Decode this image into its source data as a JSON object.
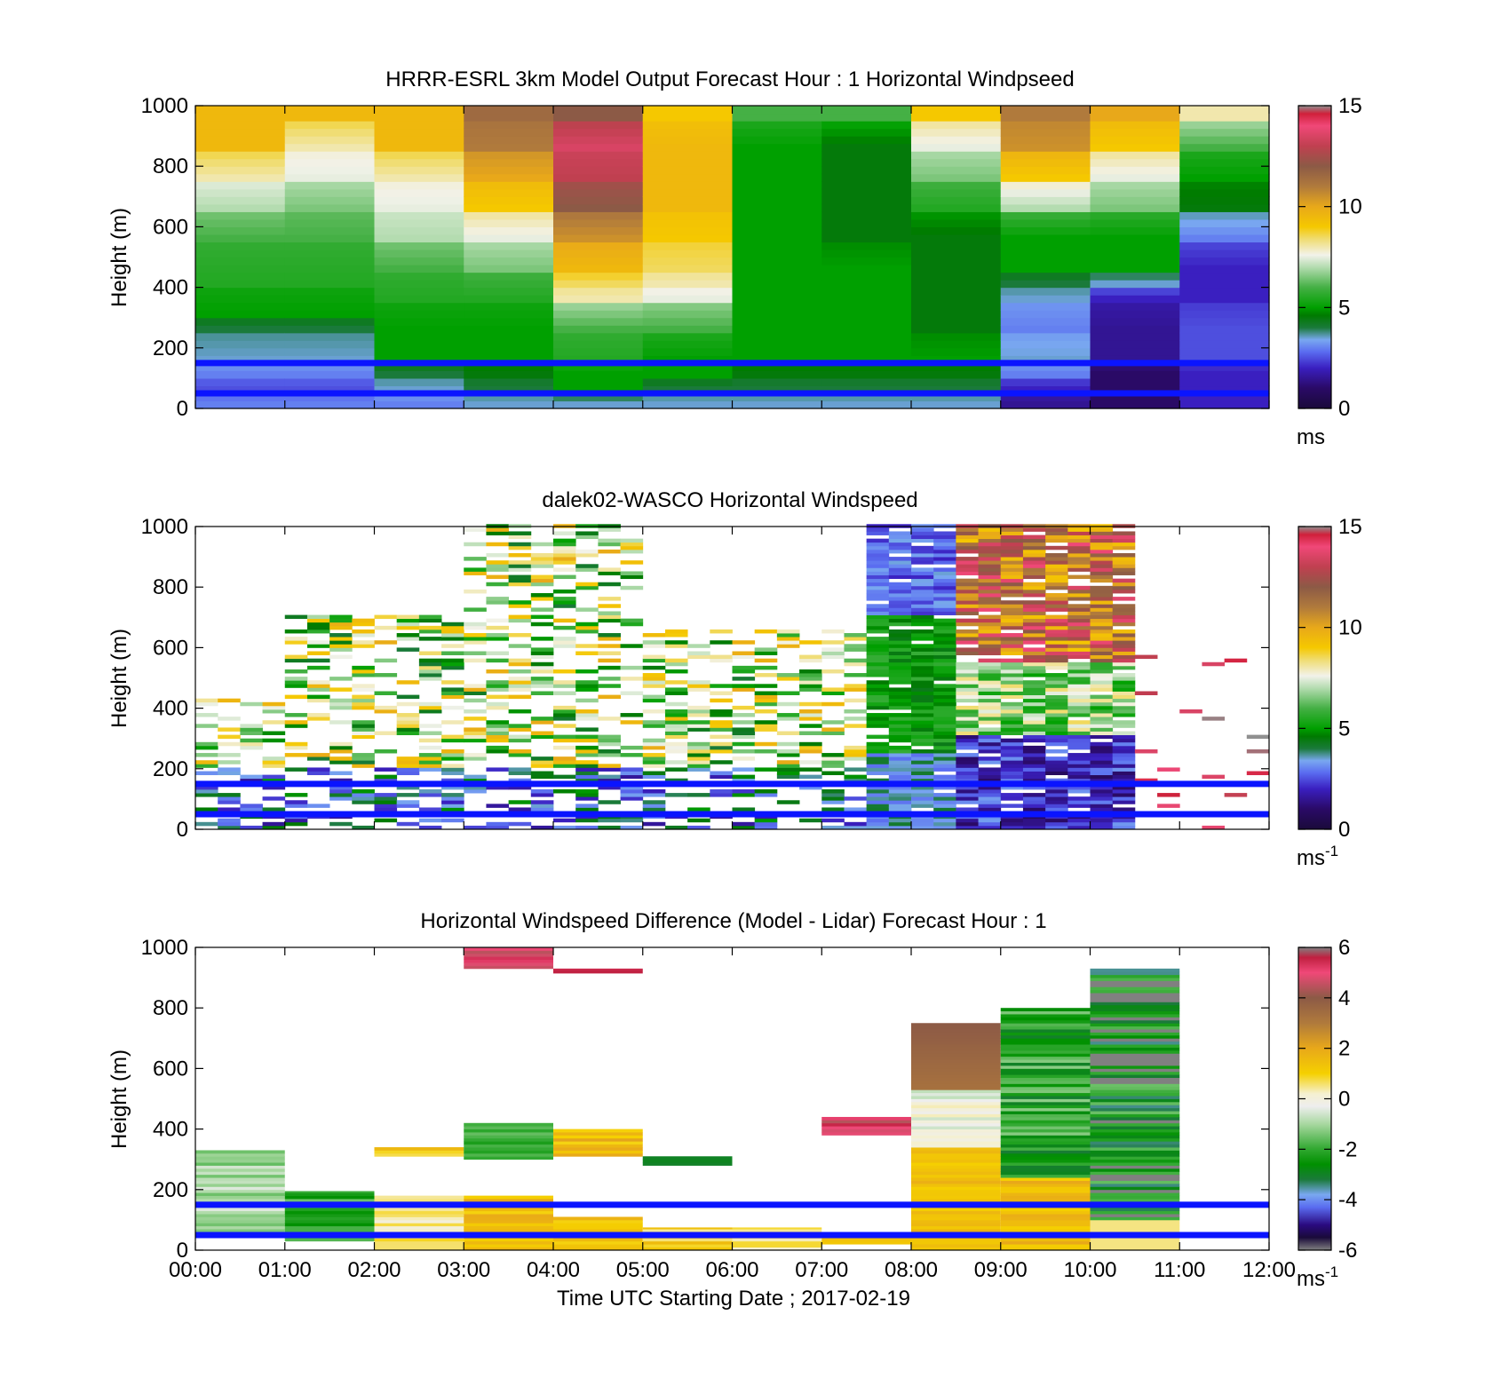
{
  "x_tick_labels": [
    "00:00",
    "01:00",
    "02:00",
    "03:00",
    "04:00",
    "05:00",
    "06:00",
    "07:00",
    "08:00",
    "09:00",
    "10:00",
    "11:00",
    "12:00"
  ],
  "x_label": "Time UTC  Starting Date ; 2017-02-19",
  "y_tick_labels": [
    "0",
    "200",
    "400",
    "600",
    "800",
    "1000"
  ],
  "blue_line_color": "#0a14ff",
  "panels": [
    {
      "id": "model",
      "title": "HRRR-ESRL 3km Model Output   Forecast Hour : 1 Horizontal Windpseed",
      "ylabel": "Height (m)",
      "colorbar": {
        "ticks": [
          "0",
          "5",
          "10",
          "15"
        ],
        "unit": "ms",
        "unit_sup": ""
      }
    },
    {
      "id": "lidar",
      "title": "dalek02-WASCO  Horizontal Windspeed",
      "ylabel": "Height (m)",
      "colorbar": {
        "ticks": [
          "0",
          "5",
          "10",
          "15"
        ],
        "unit": "ms",
        "unit_sup": "-1"
      }
    },
    {
      "id": "diff",
      "title": "Horizontal Windspeed Difference (Model - Lidar) Forecast Hour : 1",
      "ylabel": "Height (m)",
      "colorbar": {
        "ticks": [
          "-6",
          "-4",
          "-2",
          "0",
          "2",
          "4",
          "6"
        ],
        "unit": "ms",
        "unit_sup": "-1"
      }
    }
  ],
  "chart_data": [
    {
      "type": "heatmap",
      "title": "HRRR-ESRL 3km Model Output   Forecast Hour : 1 Horizontal Windpseed",
      "xlabel": "",
      "ylabel": "Height (m)",
      "x_hours": [
        0,
        1,
        2,
        3,
        4,
        5,
        6,
        7,
        8,
        9,
        10,
        11
      ],
      "xlim": [
        0,
        12
      ],
      "ylim": [
        0,
        1000
      ],
      "colorbar_range": [
        0,
        15
      ],
      "colorbar_unit": "ms",
      "reference_lines_height_m": [
        50,
        150
      ],
      "columns": [
        {
          "hour": 0,
          "profile": [
            [
              0,
              3
            ],
            [
              50,
              2.5
            ],
            [
              100,
              3
            ],
            [
              150,
              3.5
            ],
            [
              250,
              4
            ],
            [
              300,
              5
            ],
            [
              400,
              5.5
            ],
            [
              550,
              6
            ],
            [
              650,
              7
            ],
            [
              750,
              8
            ],
            [
              850,
              9.5
            ],
            [
              950,
              9.5
            ]
          ]
        },
        {
          "hour": 1,
          "profile": [
            [
              0,
              3
            ],
            [
              50,
              2.5
            ],
            [
              100,
              3
            ],
            [
              150,
              3.5
            ],
            [
              250,
              4
            ],
            [
              300,
              5
            ],
            [
              400,
              5.5
            ],
            [
              550,
              6
            ],
            [
              650,
              6.5
            ],
            [
              750,
              7.5
            ],
            [
              850,
              8
            ],
            [
              950,
              9.5
            ]
          ]
        },
        {
          "hour": 2,
          "profile": [
            [
              0,
              3
            ],
            [
              50,
              3.5
            ],
            [
              100,
              4
            ],
            [
              150,
              5
            ],
            [
              250,
              5
            ],
            [
              350,
              5.5
            ],
            [
              450,
              6
            ],
            [
              550,
              7
            ],
            [
              650,
              7.5
            ],
            [
              750,
              8
            ],
            [
              850,
              9.5
            ],
            [
              950,
              9.5
            ]
          ]
        },
        {
          "hour": 3,
          "profile": [
            [
              0,
              3.5
            ],
            [
              50,
              4
            ],
            [
              100,
              4.5
            ],
            [
              150,
              5
            ],
            [
              250,
              5
            ],
            [
              350,
              5.5
            ],
            [
              450,
              6.5
            ],
            [
              550,
              7.5
            ],
            [
              650,
              9
            ],
            [
              750,
              10
            ],
            [
              850,
              11
            ],
            [
              950,
              11.5
            ]
          ]
        },
        {
          "hour": 4,
          "profile": [
            [
              0,
              3.5
            ],
            [
              50,
              5
            ],
            [
              100,
              5
            ],
            [
              150,
              5.5
            ],
            [
              250,
              6
            ],
            [
              350,
              8
            ],
            [
              400,
              8.5
            ],
            [
              450,
              9.5
            ],
            [
              550,
              10.5
            ],
            [
              650,
              12
            ],
            [
              750,
              13
            ],
            [
              850,
              13.5
            ],
            [
              950,
              12
            ]
          ]
        },
        {
          "hour": 5,
          "profile": [
            [
              0,
              3.5
            ],
            [
              50,
              4
            ],
            [
              100,
              5
            ],
            [
              150,
              5
            ],
            [
              250,
              6
            ],
            [
              350,
              7.5
            ],
            [
              400,
              8
            ],
            [
              450,
              8.5
            ],
            [
              550,
              9
            ],
            [
              650,
              9.5
            ],
            [
              750,
              9.5
            ],
            [
              850,
              9.5
            ],
            [
              950,
              9
            ]
          ]
        },
        {
          "hour": 6,
          "profile": [
            [
              0,
              3.5
            ],
            [
              50,
              4
            ],
            [
              100,
              4.5
            ],
            [
              150,
              5
            ],
            [
              250,
              5
            ],
            [
              350,
              5
            ],
            [
              450,
              5
            ],
            [
              550,
              5
            ],
            [
              650,
              5
            ],
            [
              750,
              5
            ],
            [
              850,
              5
            ],
            [
              950,
              6
            ]
          ]
        },
        {
          "hour": 7,
          "profile": [
            [
              0,
              3.5
            ],
            [
              50,
              4
            ],
            [
              100,
              4.5
            ],
            [
              150,
              5
            ],
            [
              250,
              5
            ],
            [
              350,
              5
            ],
            [
              450,
              5
            ],
            [
              550,
              4.5
            ],
            [
              650,
              4.5
            ],
            [
              750,
              4.5
            ],
            [
              850,
              4.5
            ],
            [
              950,
              6
            ]
          ]
        },
        {
          "hour": 8,
          "profile": [
            [
              0,
              3.5
            ],
            [
              50,
              4
            ],
            [
              100,
              4.5
            ],
            [
              150,
              5
            ],
            [
              250,
              4.5
            ],
            [
              350,
              4.5
            ],
            [
              450,
              4.5
            ],
            [
              550,
              4.5
            ],
            [
              650,
              5.5
            ],
            [
              750,
              6.5
            ],
            [
              850,
              7.5
            ],
            [
              950,
              9
            ]
          ]
        },
        {
          "hour": 9,
          "profile": [
            [
              0,
              1.5
            ],
            [
              50,
              2
            ],
            [
              100,
              3
            ],
            [
              150,
              3.5
            ],
            [
              250,
              3
            ],
            [
              350,
              3.5
            ],
            [
              400,
              4
            ],
            [
              450,
              5
            ],
            [
              550,
              5
            ],
            [
              650,
              7
            ],
            [
              750,
              9
            ],
            [
              850,
              10.5
            ],
            [
              950,
              11
            ]
          ]
        },
        {
          "hour": 10,
          "profile": [
            [
              0,
              1
            ],
            [
              50,
              1
            ],
            [
              100,
              1
            ],
            [
              150,
              1.5
            ],
            [
              250,
              1.5
            ],
            [
              350,
              2
            ],
            [
              400,
              3.5
            ],
            [
              450,
              5
            ],
            [
              550,
              5
            ],
            [
              650,
              6.5
            ],
            [
              750,
              7.5
            ],
            [
              850,
              9
            ],
            [
              950,
              10
            ]
          ]
        },
        {
          "hour": 11,
          "profile": [
            [
              0,
              2
            ],
            [
              50,
              2
            ],
            [
              100,
              2
            ],
            [
              150,
              2.5
            ],
            [
              250,
              2.5
            ],
            [
              350,
              2
            ],
            [
              450,
              2
            ],
            [
              550,
              3
            ],
            [
              650,
              4.5
            ],
            [
              750,
              5
            ],
            [
              850,
              6
            ],
            [
              950,
              8
            ]
          ]
        }
      ]
    },
    {
      "type": "heatmap",
      "title": "dalek02-WASCO  Horizontal Windspeed",
      "xlabel": "",
      "ylabel": "Height (m)",
      "xlim": [
        0,
        12
      ],
      "ylim": [
        0,
        1000
      ],
      "colorbar_range": [
        0,
        15
      ],
      "colorbar_unit": "ms-1",
      "reference_lines_height_m": [
        50,
        150
      ],
      "regions": [
        {
          "x": [
            0,
            1
          ],
          "y": [
            0,
            430
          ],
          "value": 5,
          "note": "sparse green 4-6 m/s, purple/blue near ground"
        },
        {
          "x": [
            1,
            3
          ],
          "y": [
            0,
            700
          ],
          "value": 5,
          "note": "scattered green/yellow/red/blue bins"
        },
        {
          "x": [
            3,
            5
          ],
          "y": [
            0,
            1000
          ],
          "value": 5,
          "note": "sparse green aloft, yellow/brown 300-450 m, blue/purple below 200 m"
        },
        {
          "x": [
            5,
            7.5
          ],
          "y": [
            0,
            650
          ],
          "value": 3,
          "note": "sparse mixed bins"
        },
        {
          "x": [
            7.5,
            8.5
          ],
          "y": [
            0,
            1000
          ],
          "value": 4,
          "note": "dense, purple/blue aloft, green 300-650 m, blue below"
        },
        {
          "x": [
            8.5,
            9.0
          ],
          "y": [
            0,
            1000
          ],
          "value": 10,
          "note": "yellow/brown/red aloft, green middle, purple near surface"
        },
        {
          "x": [
            9.0,
            10.4
          ],
          "y": [
            0,
            1000
          ],
          "value": 11,
          "note": "red/brown/yellow aloft, green mid, dark purple/navy below 250 m"
        },
        {
          "x": [
            10.5,
            12
          ],
          "y": [
            0,
            600
          ],
          "value": 13,
          "note": "few isolated red/grey bins"
        }
      ]
    },
    {
      "type": "heatmap",
      "title": "Horizontal Windspeed Difference (Model - Lidar) Forecast Hour : 1",
      "xlabel": "Time UTC  Starting Date ; 2017-02-19",
      "ylabel": "Height (m)",
      "x_tick_labels": [
        "00:00",
        "01:00",
        "02:00",
        "03:00",
        "04:00",
        "05:00",
        "06:00",
        "07:00",
        "08:00",
        "09:00",
        "10:00",
        "11:00",
        "12:00"
      ],
      "xlim": [
        0,
        12
      ],
      "ylim": [
        0,
        1000
      ],
      "colorbar_range": [
        -6,
        6
      ],
      "colorbar_unit": "ms-1",
      "reference_lines_height_m": [
        50,
        150
      ],
      "regions": [
        {
          "x": [
            0,
            1
          ],
          "y": [
            50,
            330
          ],
          "value": -1
        },
        {
          "x": [
            1,
            2
          ],
          "y": [
            30,
            195
          ],
          "value": -2
        },
        {
          "x": [
            2,
            3
          ],
          "y": [
            0,
            180
          ],
          "value": 0.5
        },
        {
          "x": [
            2,
            3
          ],
          "y": [
            310,
            340
          ],
          "value": 1
        },
        {
          "x": [
            3,
            4
          ],
          "y": [
            0,
            180
          ],
          "value": 1.5
        },
        {
          "x": [
            3,
            4
          ],
          "y": [
            300,
            420
          ],
          "value": -2
        },
        {
          "x": [
            3,
            4
          ],
          "y": [
            930,
            1000
          ],
          "value": 5
        },
        {
          "x": [
            4,
            5
          ],
          "y": [
            0,
            110
          ],
          "value": 1.5
        },
        {
          "x": [
            4,
            5
          ],
          "y": [
            310,
            400
          ],
          "value": 1.5
        },
        {
          "x": [
            4,
            5
          ],
          "y": [
            915,
            930
          ],
          "value": 5
        },
        {
          "x": [
            5,
            6
          ],
          "y": [
            0,
            75
          ],
          "value": 1
        },
        {
          "x": [
            5,
            6
          ],
          "y": [
            280,
            310
          ],
          "value": -2.5
        },
        {
          "x": [
            6,
            7
          ],
          "y": [
            0,
            75
          ],
          "value": 0.5
        },
        {
          "x": [
            7,
            8
          ],
          "y": [
            20,
            40
          ],
          "value": 1
        },
        {
          "x": [
            7,
            8
          ],
          "y": [
            380,
            440
          ],
          "value": 5
        },
        {
          "x": [
            8,
            9
          ],
          "y": [
            0,
            750
          ],
          "value": 1,
          "note": "orange/yellow low, brown near 700 m"
        },
        {
          "x": [
            9,
            10
          ],
          "y": [
            0,
            800
          ],
          "value": -1,
          "note": "green aloft, orange 0-250 m"
        },
        {
          "x": [
            10,
            11
          ],
          "y": [
            0,
            930
          ],
          "value": -2,
          "note": "green/grey streaks, orange near surface"
        }
      ]
    }
  ]
}
